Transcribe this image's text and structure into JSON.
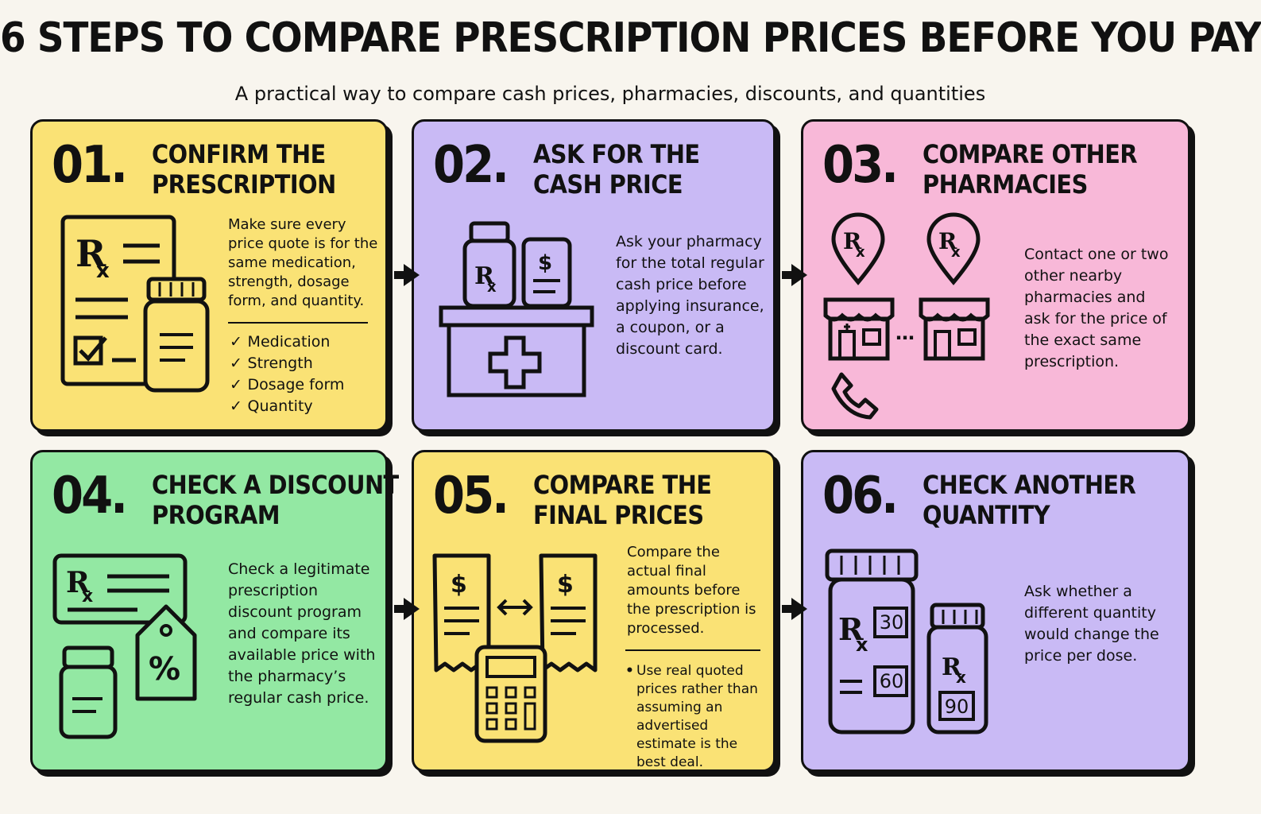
{
  "title": "6 STEPS TO COMPARE PRESCRIPTION PRICES BEFORE YOU PAY",
  "subtitle": "A practical way to compare cash prices, pharmacies, discounts, and quantities",
  "colors": {
    "yellow": "#fae275",
    "purple": "#c9baf5",
    "pink": "#f8b8d8",
    "green": "#93e8a3",
    "ink": "#111111"
  },
  "steps": [
    {
      "number": "01.",
      "heading_line1": "CONFIRM THE",
      "heading_line2": "PRESCRIPTION",
      "description": "Make sure every price quote is for the same medication, strength, dosage form, and quantity.",
      "checklist": [
        "Medication",
        "Strength",
        "Dosage form",
        "Quantity"
      ],
      "icons": [
        "prescription-form-icon",
        "pill-bottle-icon"
      ]
    },
    {
      "number": "02.",
      "heading_line1": "ASK FOR THE",
      "heading_line2": "CASH PRICE",
      "description": "Ask your pharmacy for the total regular cash price before applying insurance, a coupon, or a discount card.",
      "icons": [
        "pharmacy-counter-icon",
        "rx-bottle-icon",
        "price-receipt-icon"
      ]
    },
    {
      "number": "03.",
      "heading_line1": "COMPARE OTHER",
      "heading_line2": "PHARMACIES",
      "description": "Contact one or two other nearby pharmacies and ask for the price of the exact same prescription.",
      "icons": [
        "location-pin-icon",
        "pharmacy-store-icon",
        "phone-icon"
      ]
    },
    {
      "number": "04.",
      "heading_line1": "CHECK A DISCOUNT",
      "heading_line2": "PROGRAM",
      "description": "Check a legitimate prescription discount program and compare its available price with the pharmacy’s regular cash price.",
      "icons": [
        "discount-card-icon",
        "percent-tag-icon",
        "pill-bottle-icon"
      ]
    },
    {
      "number": "05.",
      "heading_line1": "COMPARE THE",
      "heading_line2": "FINAL PRICES",
      "description": "Compare the actual final amounts before the prescription is processed.",
      "note": "Use real quoted prices rather than assuming an advertised estimate is the best deal.",
      "icons": [
        "receipt-icon",
        "compare-arrows-icon",
        "calculator-icon"
      ]
    },
    {
      "number": "06.",
      "heading_line1": "CHECK ANOTHER",
      "heading_line2": "QUANTITY",
      "description": "Ask whether a different quantity would change the price per dose.",
      "quantities": [
        "30",
        "60",
        "90"
      ],
      "icons": [
        "large-bottle-icon",
        "small-bottle-icon"
      ]
    }
  ]
}
